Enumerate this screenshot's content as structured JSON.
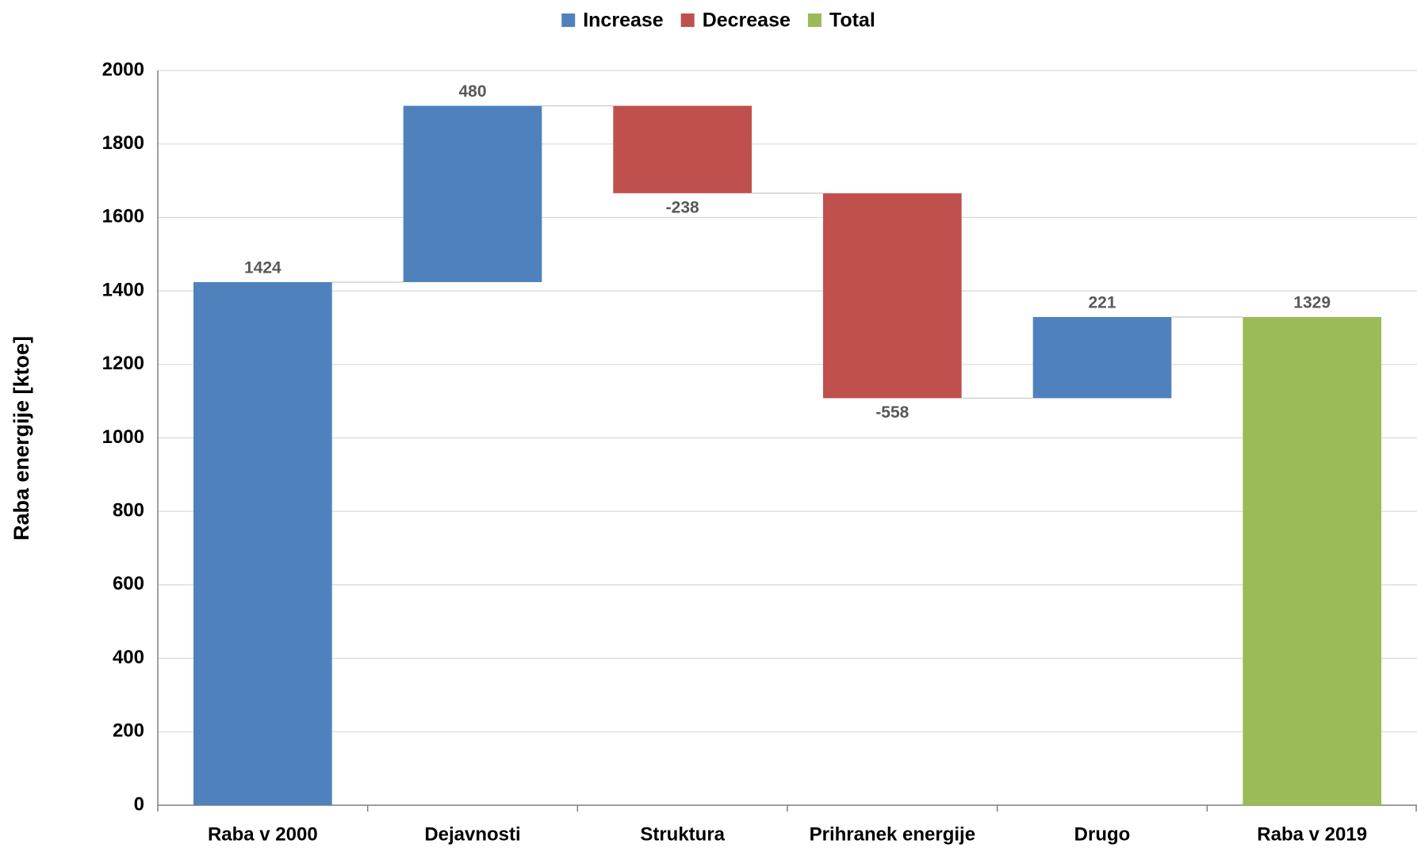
{
  "chart_data": {
    "type": "waterfall",
    "y_label": "Raba energije [ktoe]",
    "categories": [
      "Raba v 2000",
      "Dejavnosti",
      "Struktura",
      "Prihranek energije",
      "Drugo",
      "Raba v 2019"
    ],
    "series": [
      {
        "name": "Increase",
        "color": "#4f81bd",
        "values": [
          1424,
          480,
          null,
          null,
          221,
          null
        ]
      },
      {
        "name": "Decrease",
        "color": "#c0504d",
        "values": [
          null,
          null,
          -238,
          -558,
          null,
          null
        ]
      },
      {
        "name": "Total",
        "color": "#9bbb59",
        "values": [
          null,
          null,
          null,
          null,
          null,
          1329
        ]
      }
    ],
    "ylim": [
      0,
      2000
    ],
    "yticks": [
      0,
      200,
      400,
      600,
      800,
      1000,
      1200,
      1400,
      1600,
      1800,
      2000
    ],
    "grid": true,
    "legend": "top"
  }
}
